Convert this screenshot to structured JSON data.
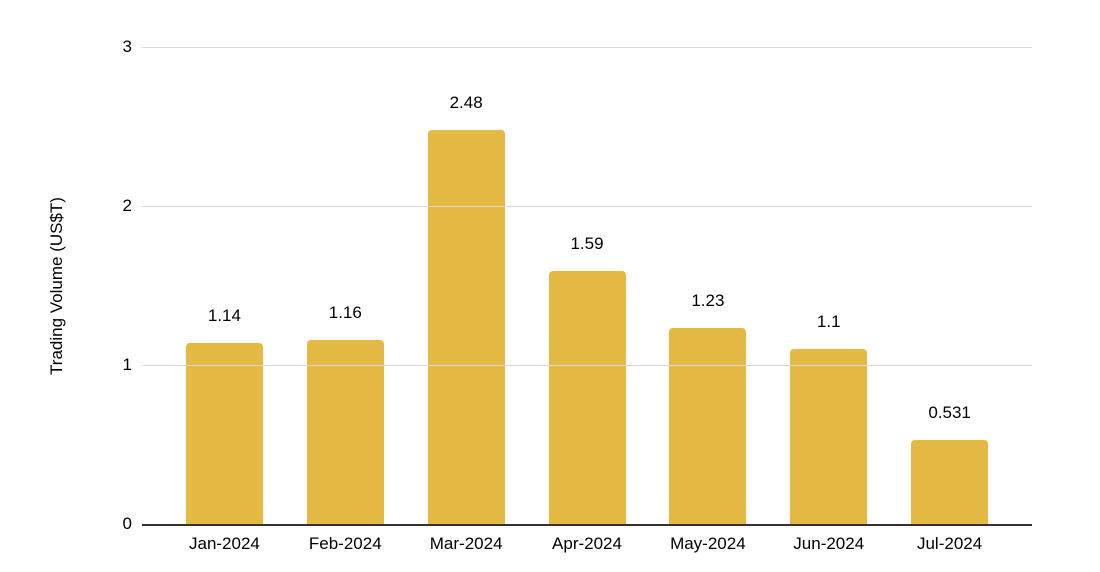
{
  "chart_data": {
    "type": "bar",
    "categories": [
      "Jan-2024",
      "Feb-2024",
      "Mar-2024",
      "Apr-2024",
      "May-2024",
      "Jun-2024",
      "Jul-2024"
    ],
    "values": [
      1.14,
      1.16,
      2.48,
      1.59,
      1.23,
      1.1,
      0.531
    ],
    "data_labels": [
      "1.14",
      "1.16",
      "2.48",
      "1.59",
      "1.23",
      "1.1",
      "0.531"
    ],
    "title": "",
    "xlabel": "",
    "ylabel": "Trading Volume (US$T)",
    "ylim": [
      0,
      3
    ],
    "yticks": [
      "0",
      "1",
      "2",
      "3"
    ],
    "grid": true,
    "legend_position": "none",
    "colors": {
      "bar": "#E4B944",
      "gridline": "#D9D9D9",
      "axis_line": "#333333",
      "label_text": "#000000",
      "background": "#FFFFFF"
    }
  }
}
